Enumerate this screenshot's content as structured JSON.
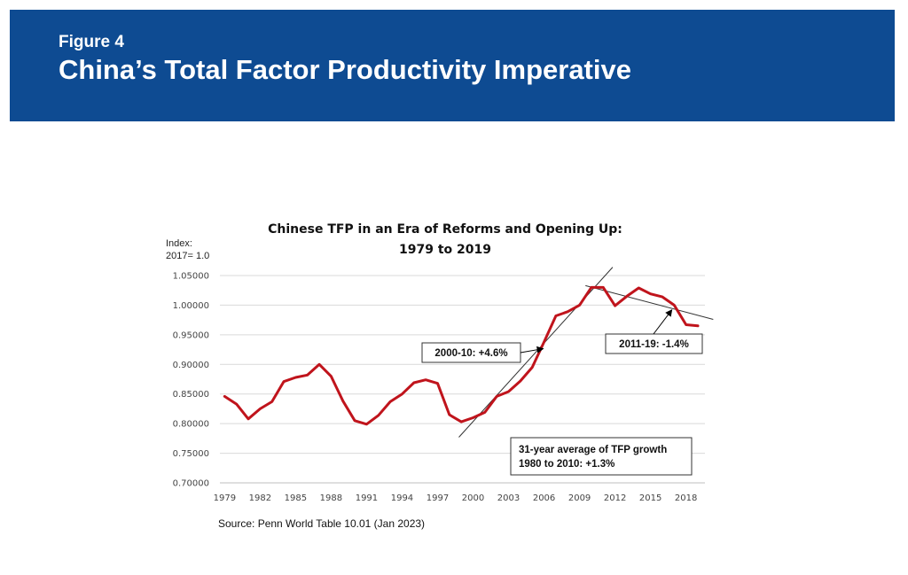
{
  "header": {
    "figure_label": "Figure 4",
    "title": "China’s Total Factor Productivity Imperative",
    "background_color": "#0e4b92"
  },
  "chart_data": {
    "type": "line",
    "title_line1": "Chinese TFP in an Era of Reforms and Opening Up:",
    "title_line2": "1979 to 2019",
    "ylabel_line1": "Index:",
    "ylabel_line2": "2017= 1.0",
    "xlabel": "",
    "ylim": [
      0.7,
      1.05
    ],
    "yticks": [
      "0.70000",
      "0.75000",
      "0.80000",
      "0.85000",
      "0.90000",
      "0.95000",
      "1.00000",
      "1.05000"
    ],
    "xticks": [
      "1979",
      "1982",
      "1985",
      "1988",
      "1991",
      "1994",
      "1997",
      "2000",
      "2003",
      "2006",
      "2009",
      "2012",
      "2015",
      "2018"
    ],
    "grid": "horizontal",
    "series": [
      {
        "name": "",
        "color": "#c0141c",
        "x": [
          1979,
          1980,
          1981,
          1982,
          1983,
          1984,
          1985,
          1986,
          1987,
          1988,
          1989,
          1990,
          1991,
          1992,
          1993,
          1994,
          1995,
          1996,
          1997,
          1998,
          1999,
          2000,
          2001,
          2002,
          2003,
          2004,
          2005,
          2006,
          2007,
          2008,
          2009,
          2010,
          2011,
          2012,
          2013,
          2014,
          2015,
          2016,
          2017,
          2018,
          2019
        ],
        "values": [
          0.846,
          0.833,
          0.808,
          0.825,
          0.837,
          0.871,
          0.878,
          0.882,
          0.9,
          0.88,
          0.838,
          0.805,
          0.799,
          0.814,
          0.837,
          0.85,
          0.869,
          0.874,
          0.868,
          0.815,
          0.803,
          0.81,
          0.819,
          0.846,
          0.854,
          0.872,
          0.895,
          0.938,
          0.982,
          0.989,
          1.0,
          1.03,
          1.03,
          0.999,
          1.015,
          1.029,
          1.019,
          1.014,
          1.0,
          0.967,
          0.965
        ]
      }
    ],
    "trendlines": [
      {
        "from": [
          1998.8,
          0.777
        ],
        "to": [
          2011.8,
          1.064
        ],
        "color": "#333333"
      },
      {
        "from": [
          2009.5,
          1.033
        ],
        "to": [
          2020.3,
          0.976
        ],
        "color": "#333333"
      }
    ],
    "annotations": [
      {
        "text": "2000-10: +4.6%",
        "at": [
          2006,
          0.928
        ]
      },
      {
        "text": "2011-19: -1.4%",
        "at": [
          2016.8,
          0.995
        ]
      },
      {
        "text_line1": "31-year average of TFP growth",
        "text_line2": "1980 to 2010: +1.3%"
      }
    ],
    "source": "Source: Penn World Table 10.01 (Jan 2023)"
  }
}
